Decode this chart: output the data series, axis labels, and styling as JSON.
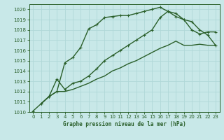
{
  "title": "Graphe pression niveau de la mer (hPa)",
  "bg_color": "#c8e8e8",
  "grid_color": "#b0d8d8",
  "line_color": "#2a5f2a",
  "xlim": [
    -0.5,
    23.5
  ],
  "ylim": [
    1010,
    1020.5
  ],
  "xticks": [
    0,
    1,
    2,
    3,
    4,
    5,
    6,
    7,
    8,
    9,
    10,
    11,
    12,
    13,
    14,
    15,
    16,
    17,
    18,
    19,
    20,
    21,
    22,
    23
  ],
  "yticks": [
    1010,
    1011,
    1012,
    1013,
    1014,
    1015,
    1016,
    1017,
    1018,
    1019,
    1020
  ],
  "line1_x": [
    0,
    1,
    2,
    3,
    4,
    5,
    6,
    7,
    8,
    9,
    10,
    11,
    12,
    13,
    14,
    15,
    16,
    17,
    18,
    19,
    20,
    21,
    22,
    23
  ],
  "line1_y": [
    1010.1,
    1010.8,
    1011.5,
    1012.0,
    1014.8,
    1015.3,
    1016.3,
    1018.1,
    1018.5,
    1019.2,
    1019.3,
    1019.4,
    1019.4,
    1019.6,
    1019.8,
    1020.0,
    1020.2,
    1019.8,
    1019.3,
    1019.0,
    1018.0,
    1017.6,
    1017.8,
    1017.8
  ],
  "line2_x": [
    1,
    2,
    3,
    4,
    5,
    6,
    7,
    8,
    9,
    10,
    11,
    12,
    13,
    14,
    15,
    16,
    17,
    18,
    19,
    20,
    21,
    22,
    23
  ],
  "line2_y": [
    1010.8,
    1011.5,
    1013.2,
    1012.2,
    1012.8,
    1013.0,
    1013.5,
    1014.2,
    1015.0,
    1015.5,
    1016.0,
    1016.5,
    1017.0,
    1017.5,
    1018.0,
    1019.2,
    1019.8,
    1019.6,
    1019.0,
    1018.8,
    1018.0,
    1017.5,
    1016.5
  ],
  "line3_x": [
    1,
    2,
    3,
    4,
    5,
    6,
    7,
    8,
    9,
    10,
    11,
    12,
    13,
    14,
    15,
    16,
    17,
    18,
    19,
    20,
    21,
    22,
    23
  ],
  "line3_y": [
    1010.8,
    1011.5,
    1012.0,
    1012.0,
    1012.2,
    1012.5,
    1012.8,
    1013.2,
    1013.5,
    1014.0,
    1014.3,
    1014.7,
    1015.0,
    1015.4,
    1015.8,
    1016.2,
    1016.5,
    1016.9,
    1016.5,
    1016.5,
    1016.6,
    1016.5,
    1016.5
  ],
  "line_width": 1.0,
  "marker_size": 3.5
}
